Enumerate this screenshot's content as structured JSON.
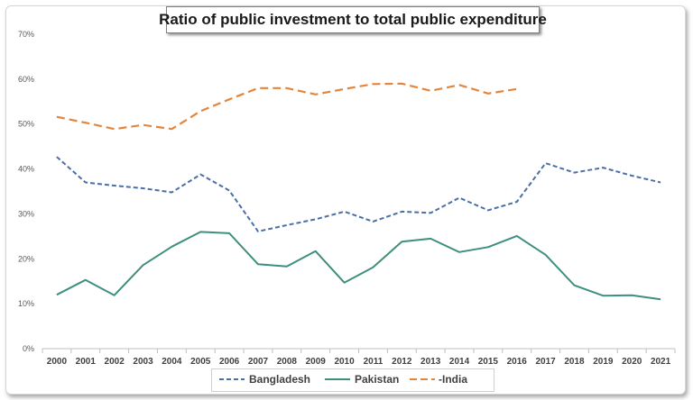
{
  "chart_data": {
    "type": "line",
    "title": "Ratio of public investment to total public expenditure",
    "xlabel": "",
    "ylabel": "",
    "ylim": [
      0,
      70
    ],
    "y_ticks": [
      "0%",
      "10%",
      "20%",
      "30%",
      "40%",
      "50%",
      "60%",
      "70%"
    ],
    "categories": [
      "2000",
      "2001",
      "2002",
      "2003",
      "2004",
      "2005",
      "2006",
      "2007",
      "2008",
      "2009",
      "2010",
      "2011",
      "2012",
      "2013",
      "2014",
      "2015",
      "2016",
      "2017",
      "2018",
      "2019",
      "2020",
      "2021"
    ],
    "grid": false,
    "legend_position": "bottom",
    "series": [
      {
        "name": "Bangladesh",
        "color": "#4a6fa5",
        "style": "dashed",
        "values": [
          42.7,
          37.0,
          36.3,
          35.7,
          34.8,
          38.8,
          35.2,
          26.1,
          27.5,
          28.8,
          30.5,
          28.3,
          30.5,
          30.2,
          33.6,
          30.8,
          32.7,
          41.3,
          39.2,
          40.3,
          38.5,
          37.0
        ]
      },
      {
        "name": "Pakistan",
        "color": "#3f8f7e",
        "style": "solid",
        "values": [
          12.0,
          15.3,
          11.9,
          18.6,
          22.7,
          26.0,
          25.7,
          18.8,
          18.3,
          21.7,
          14.7,
          18.1,
          23.8,
          24.5,
          21.5,
          22.6,
          25.1,
          20.9,
          14.1,
          11.8,
          11.9,
          11.0
        ]
      },
      {
        "name": "-India",
        "color": "#e3853c",
        "style": "dashed",
        "values": [
          51.6,
          50.3,
          48.9,
          49.8,
          48.9,
          52.9,
          55.5,
          58.0,
          58.0,
          56.6,
          57.8,
          58.9,
          59.0,
          57.4,
          58.7,
          56.8,
          57.8,
          null,
          null,
          null,
          null,
          null
        ]
      }
    ]
  }
}
